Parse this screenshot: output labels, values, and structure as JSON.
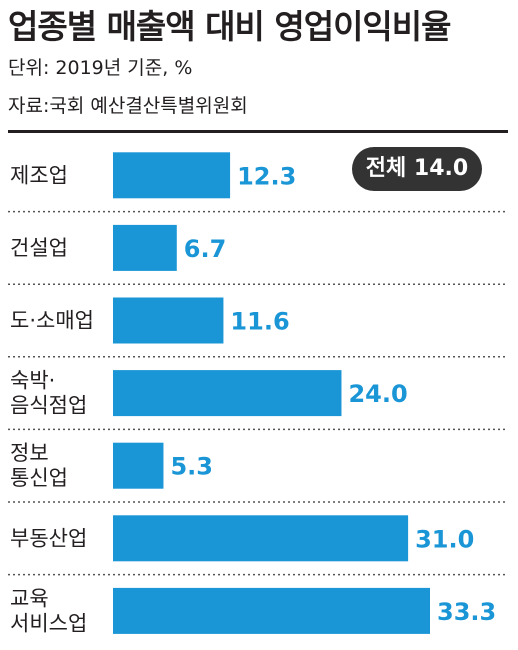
{
  "title": "업종별 매출액 대비 영업이익비율",
  "unit": "단위: 2019년 기준, %",
  "source": "자료:국회 예산결산특별위원회",
  "total_badge": "전체 14.0",
  "colors": {
    "bar": "#1a95d6",
    "value": "#1a95d6",
    "text": "#231f20",
    "badge_bg": "#333333"
  },
  "chart_data": {
    "type": "bar",
    "orientation": "horizontal",
    "categories": [
      [
        "제조업"
      ],
      [
        "건설업"
      ],
      [
        "도·소매업"
      ],
      [
        "숙박·",
        "음식점업"
      ],
      [
        "정보",
        "통신업"
      ],
      [
        "부동산업"
      ],
      [
        "교육",
        "서비스업"
      ]
    ],
    "values": [
      12.3,
      6.7,
      11.6,
      24.0,
      5.3,
      31.0,
      33.3
    ],
    "value_labels": [
      "12.3",
      "6.7",
      "11.6",
      "24.0",
      "5.3",
      "31.0",
      "33.3"
    ],
    "total": 14.0,
    "xlim": [
      0,
      33.3
    ],
    "grid": false,
    "separators": "dotted"
  }
}
